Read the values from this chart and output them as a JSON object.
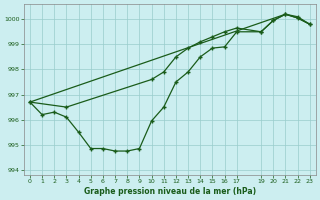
{
  "title": "Graphe pression niveau de la mer (hPa)",
  "bg_color": "#cceef0",
  "grid_color": "#99cccc",
  "line_color": "#1a5c1a",
  "marker_color": "#1a5c1a",
  "xlim": [
    -0.5,
    23.5
  ],
  "ylim": [
    993.8,
    1000.6
  ],
  "xticks": [
    0,
    1,
    2,
    3,
    4,
    5,
    6,
    7,
    8,
    9,
    10,
    11,
    12,
    13,
    14,
    15,
    16,
    17,
    19,
    20,
    21,
    22,
    23
  ],
  "yticks": [
    994,
    995,
    996,
    997,
    998,
    999,
    1000
  ],
  "line1_x": [
    0,
    1,
    2,
    3,
    4,
    5,
    6,
    7,
    8,
    9,
    10,
    11,
    12,
    13,
    14,
    15,
    16,
    17,
    19,
    20,
    21,
    22,
    23
  ],
  "line1_y": [
    996.7,
    996.2,
    996.3,
    996.1,
    995.5,
    994.85,
    994.85,
    994.75,
    994.75,
    994.85,
    995.95,
    996.5,
    997.5,
    997.9,
    998.5,
    998.85,
    998.9,
    999.5,
    999.5,
    999.95,
    1000.2,
    1000.1,
    999.8
  ],
  "line2_x": [
    0,
    3,
    10,
    11,
    12,
    13,
    14,
    15,
    16,
    17,
    19,
    20,
    21,
    22,
    23
  ],
  "line2_y": [
    996.7,
    996.5,
    997.6,
    997.9,
    998.5,
    998.85,
    999.1,
    999.3,
    999.5,
    999.65,
    999.5,
    999.95,
    1000.2,
    1000.05,
    999.8
  ],
  "line3_x": [
    0,
    21,
    22,
    23
  ],
  "line3_y": [
    996.7,
    1000.2,
    1000.05,
    999.8
  ]
}
